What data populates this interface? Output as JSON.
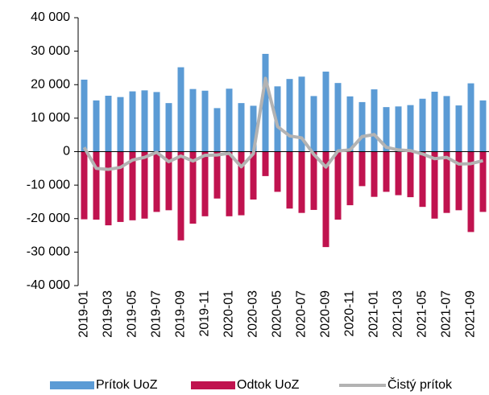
{
  "chart_data": {
    "type": "bar-line",
    "categories": [
      "2019-01",
      null,
      "2019-03",
      null,
      "2019-05",
      null,
      "2019-07",
      null,
      "2019-09",
      null,
      "2019-11",
      null,
      "2020-01",
      null,
      "2020-03",
      null,
      "2020-05",
      null,
      "2020-07",
      null,
      "2020-09",
      null,
      "2020-11",
      null,
      "2021-01",
      null,
      "2021-03",
      null,
      "2021-05",
      null,
      "2021-07",
      null,
      "2021-09",
      null
    ],
    "series": [
      {
        "name": "Prítok UoZ",
        "type": "bar",
        "color": "#5b9bd5",
        "values": [
          21500,
          15300,
          16700,
          16300,
          18000,
          18300,
          17800,
          14500,
          25200,
          18700,
          18200,
          13000,
          18800,
          14500,
          13700,
          29200,
          19500,
          21700,
          22400,
          16600,
          23900,
          20500,
          16500,
          14800,
          18600,
          13300,
          13500,
          13900,
          15800,
          17900,
          16600,
          13800,
          20400,
          15300
        ]
      },
      {
        "name": "Odtok UoZ",
        "type": "bar",
        "color": "#c0134f",
        "values": [
          -20200,
          -20300,
          -22000,
          -21000,
          -20500,
          -20000,
          -18000,
          -17500,
          -26500,
          -21500,
          -19300,
          -14000,
          -19300,
          -19000,
          -14300,
          -7300,
          -12000,
          -17000,
          -18300,
          -17400,
          -28500,
          -20300,
          -16000,
          -10300,
          -13500,
          -12000,
          -13000,
          -13600,
          -16500,
          -20000,
          -18300,
          -17500,
          -24000,
          -18000
        ]
      },
      {
        "name": "Čistý prítok",
        "type": "line",
        "color": "#b3b3b3",
        "values": [
          1300,
          -5000,
          -5300,
          -4700,
          -2500,
          -1700,
          -200,
          -3000,
          -1300,
          -2800,
          -1100,
          -1000,
          -500,
          -4500,
          -600,
          21900,
          7500,
          4700,
          4100,
          -800,
          -4600,
          200,
          500,
          4500,
          5100,
          1300,
          500,
          300,
          -700,
          -2100,
          -1700,
          -3700,
          -3600,
          -2700
        ]
      }
    ],
    "ylim": [
      -40000,
      40000
    ],
    "yticks": [
      {
        "value": -40000,
        "label": "-40 000"
      },
      {
        "value": -30000,
        "label": "-30 000"
      },
      {
        "value": -20000,
        "label": "-20 000"
      },
      {
        "value": -10000,
        "label": "-10 000"
      },
      0,
      {
        "value": 10000,
        "label": "10 000"
      },
      {
        "value": 20000,
        "label": "20 000"
      },
      {
        "value": 30000,
        "label": "30 000"
      },
      {
        "value": 40000,
        "label": "40 000"
      }
    ],
    "legend": "bottom"
  }
}
